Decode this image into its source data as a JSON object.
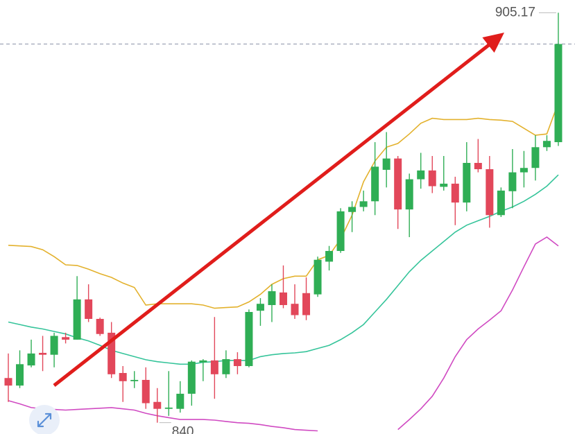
{
  "chart_data": {
    "type": "candlestick",
    "ylim": [
      838.2,
      907.2
    ],
    "up_color": "#2fae55",
    "down_color": "#e2475a",
    "open": [
      847.1,
      845.9,
      849.1,
      851.1,
      850.8,
      853.6,
      853.2,
      859.6,
      856.5,
      854.3,
      847.9,
      846.6,
      846.8,
      843.3,
      842.2,
      842.2,
      844.6,
      849.6,
      849.9,
      847.7,
      850.1,
      849.0,
      857.8,
      858.7,
      860.7,
      858.9,
      860.6,
      860.4,
      865.6,
      867.3,
      873.5,
      874.3,
      875.2,
      880.2,
      882.0,
      873.9,
      878.7,
      880.1,
      877.5,
      878.0,
      875.0,
      881.3,
      880.3,
      873.0,
      876.8,
      879.8,
      880.5,
      883.8,
      884.6
    ],
    "high": [
      851.0,
      851.5,
      853.2,
      853.8,
      854.3,
      854.3,
      863.3,
      862.0,
      856.7,
      856.0,
      849.0,
      848.2,
      848.8,
      845.5,
      848.2,
      846.6,
      849.9,
      850.1,
      856.8,
      851.5,
      851.2,
      858.0,
      859.8,
      862.0,
      865.0,
      862.0,
      863.1,
      866.4,
      868.1,
      874.1,
      875.2,
      876.9,
      884.6,
      886.2,
      882.4,
      879.6,
      882.9,
      882.4,
      882.4,
      879.1,
      884.6,
      885.1,
      882.4,
      877.4,
      883.5,
      883.2,
      885.7,
      885.7,
      905.17
    ],
    "low": [
      843.3,
      845.5,
      848.8,
      848.2,
      848.8,
      852.6,
      853.2,
      856.0,
      853.8,
      847.1,
      843.3,
      845.5,
      842.2,
      840.0,
      841.08,
      841.6,
      842.7,
      846.6,
      843.8,
      847.1,
      847.7,
      848.8,
      855.4,
      856.0,
      858.2,
      856.5,
      856.3,
      860.0,
      864.2,
      867.0,
      870.3,
      873.6,
      873.0,
      877.4,
      870.8,
      869.5,
      877.2,
      876.5,
      876.9,
      871.4,
      873.6,
      879.8,
      871.0,
      872.7,
      874.1,
      877.4,
      878.5,
      883.2,
      884.0
    ],
    "close": [
      845.9,
      849.3,
      851.0,
      850.8,
      853.8,
      853.2,
      859.6,
      856.5,
      854.1,
      847.7,
      846.6,
      846.8,
      843.1,
      842.2,
      842.4,
      844.6,
      849.7,
      849.9,
      847.7,
      850.1,
      849.0,
      857.6,
      858.9,
      860.9,
      858.7,
      857.1,
      857.1,
      865.9,
      867.3,
      873.6,
      874.3,
      875.2,
      880.7,
      882.0,
      873.9,
      878.7,
      880.1,
      877.6,
      878.0,
      875.0,
      881.3,
      880.3,
      873.0,
      876.9,
      879.8,
      880.5,
      883.8,
      884.8,
      900.2
    ],
    "lines": [
      {
        "color": "#e3b12c",
        "values": [
          868.2,
          868.1,
          868.0,
          867.5,
          866.4,
          865.1,
          865.0,
          864.4,
          863.7,
          863.1,
          862.2,
          861.5,
          858.7,
          858.9,
          858.9,
          858.9,
          858.9,
          858.7,
          858.2,
          858.3,
          858.4,
          859.2,
          860.4,
          862.0,
          862.9,
          863.3,
          863.3,
          865.9,
          866.6,
          869.2,
          873.0,
          878.3,
          881.6,
          883.8,
          884.4,
          885.9,
          887.6,
          888.4,
          888.2,
          888.2,
          888.2,
          888.4,
          888.2,
          888.1,
          887.9,
          886.8,
          885.7,
          885.9,
          890.9
        ]
      },
      {
        "color": "#35c49a",
        "values": [
          856.0,
          855.6,
          855.2,
          854.9,
          854.5,
          854.1,
          853.5,
          853.0,
          852.3,
          851.5,
          851.0,
          850.5,
          850.0,
          849.7,
          849.5,
          849.3,
          849.3,
          849.6,
          849.7,
          849.9,
          849.9,
          849.9,
          850.5,
          850.8,
          851.0,
          851.1,
          851.3,
          851.8,
          852.3,
          853.2,
          854.3,
          855.6,
          857.6,
          859.6,
          861.8,
          864.0,
          865.8,
          867.3,
          868.8,
          870.3,
          871.4,
          872.1,
          872.8,
          873.6,
          874.3,
          875.2,
          876.3,
          877.6,
          879.4
        ]
      },
      {
        "color": "#d04ac2",
        "values": [
          843.5,
          843.0,
          842.4,
          842.2,
          842.1,
          842.0,
          842.1,
          842.2,
          842.3,
          842.4,
          842.2,
          842.0,
          841.5,
          841.1,
          840.8,
          840.5,
          840.5,
          840.5,
          840.4,
          840.2,
          840.0,
          839.9,
          839.7,
          839.4,
          839.2,
          838.9,
          838.8,
          838.7,
          null,
          null,
          null,
          null,
          null,
          null,
          838.9,
          840.5,
          842.2,
          844.2,
          847.1,
          850.5,
          853.2,
          854.9,
          856.3,
          857.8,
          861.1,
          864.8,
          868.4,
          869.5,
          868.1
        ]
      }
    ]
  }
}
